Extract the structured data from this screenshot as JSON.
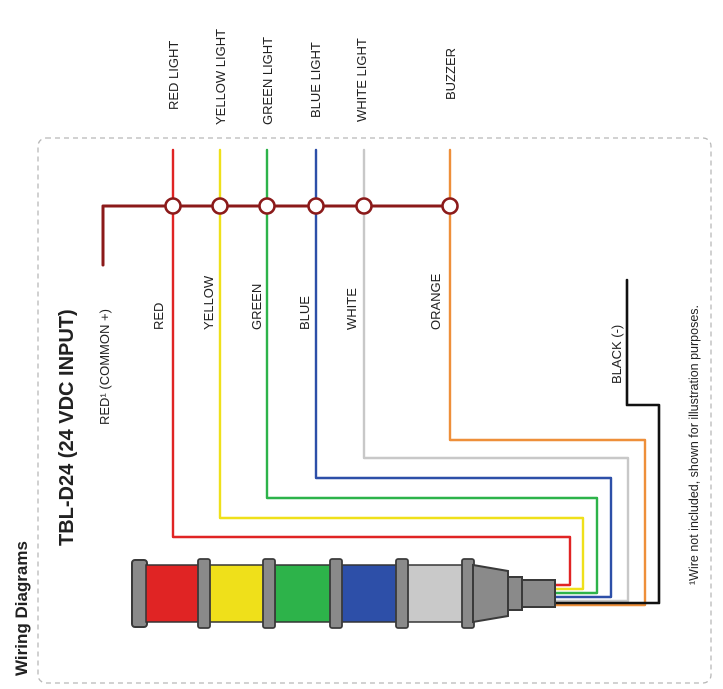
{
  "section_title": "Wiring Diagrams",
  "diagram_title": "TBL-D24 (24 VDC INPUT)",
  "outputs": [
    "RED LIGHT",
    "YELLOW LIGHT",
    "GREEN LIGHT",
    "BLUE LIGHT",
    "WHITE LIGHT",
    "BUZZER"
  ],
  "common_wire": "RED¹ (COMMON +)",
  "wires": [
    "RED",
    "YELLOW",
    "GREEN",
    "BLUE",
    "WHITE",
    "ORANGE"
  ],
  "ground_wire": "BLACK (-)",
  "footnote": "¹Wire not included, shown for illustration purposes.",
  "colors": {
    "common": "#8b1a1a",
    "red": "#e02424",
    "yellow": "#efe01a",
    "green": "#2db34a",
    "blue": "#2d4fa8",
    "white": "#c8c8c8",
    "orange": "#ee8f3a",
    "black": "#111111"
  }
}
